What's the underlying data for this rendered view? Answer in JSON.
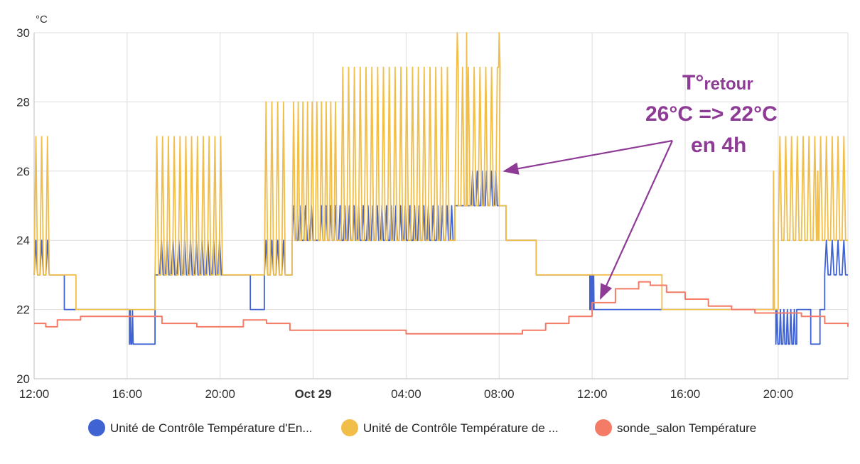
{
  "chart_data": {
    "type": "line",
    "step": true,
    "y_unit_label": "°C",
    "ylim": [
      20,
      30
    ],
    "y_ticks": [
      20,
      22,
      24,
      26,
      28,
      30
    ],
    "xlim_hours": [
      0,
      35
    ],
    "x_ticks": [
      {
        "label": "12:00",
        "hour": 0,
        "bold": false
      },
      {
        "label": "16:00",
        "hour": 4,
        "bold": false
      },
      {
        "label": "20:00",
        "hour": 8,
        "bold": false
      },
      {
        "label": "Oct 29",
        "hour": 12,
        "bold": true
      },
      {
        "label": "04:00",
        "hour": 16,
        "bold": false
      },
      {
        "label": "08:00",
        "hour": 20,
        "bold": false
      },
      {
        "label": "12:00",
        "hour": 24,
        "bold": false
      },
      {
        "label": "16:00",
        "hour": 28,
        "bold": false
      },
      {
        "label": "20:00",
        "hour": 32,
        "bold": false
      }
    ],
    "grid": true,
    "legend_position": "bottom",
    "series": [
      {
        "name": "Unité de Contrôle Température d'En...",
        "color": "#3f63d3",
        "segments": [
          {
            "from": 0.0,
            "to": 0.9,
            "value": 23,
            "osc_high": 24,
            "period": 0.25
          },
          {
            "from": 0.9,
            "to": 1.3,
            "value": 23
          },
          {
            "from": 1.3,
            "to": 1.8,
            "value": 22
          },
          {
            "from": 1.8,
            "to": 4.1,
            "value": 22
          },
          {
            "from": 4.1,
            "to": 4.3,
            "value": 21,
            "osc_high": 22,
            "period": 0.1
          },
          {
            "from": 4.3,
            "to": 5.2,
            "value": 21
          },
          {
            "from": 5.2,
            "to": 5.4,
            "value": 23
          },
          {
            "from": 5.4,
            "to": 8.3,
            "value": 23,
            "osc_high": 24,
            "period": 0.25
          },
          {
            "from": 8.3,
            "to": 9.3,
            "value": 23
          },
          {
            "from": 9.3,
            "to": 9.9,
            "value": 22
          },
          {
            "from": 9.9,
            "to": 11.1,
            "value": 23,
            "osc_high": 24,
            "period": 0.25
          },
          {
            "from": 11.1,
            "to": 12.3,
            "value": 24,
            "osc_high": 25,
            "period": 0.25
          },
          {
            "from": 12.3,
            "to": 18.1,
            "value": 24,
            "osc_high": 25,
            "period": 0.2
          },
          {
            "from": 18.1,
            "to": 18.8,
            "value": 25
          },
          {
            "from": 18.8,
            "to": 20.1,
            "value": 25,
            "osc_high": 26,
            "period": 0.2
          },
          {
            "from": 20.1,
            "to": 20.3,
            "value": 25
          },
          {
            "from": 20.3,
            "to": 21.6,
            "value": 24
          },
          {
            "from": 21.6,
            "to": 23.9,
            "value": 23
          },
          {
            "from": 23.9,
            "to": 24.1,
            "value": 22,
            "osc_high": 23,
            "period": 0.05
          },
          {
            "from": 24.1,
            "to": 31.9,
            "value": 22
          },
          {
            "from": 31.9,
            "to": 32.8,
            "value": 21,
            "osc_high": 22,
            "period": 0.15
          },
          {
            "from": 32.8,
            "to": 33.4,
            "value": 22
          },
          {
            "from": 33.4,
            "to": 33.8,
            "value": 21
          },
          {
            "from": 33.8,
            "to": 34.0,
            "value": 22
          },
          {
            "from": 34.0,
            "to": 35.0,
            "value": 23,
            "osc_high": 24,
            "period": 0.25
          }
        ]
      },
      {
        "name": "Unité de Contrôle Température de ...",
        "color": "#f2be4a",
        "segments": [
          {
            "from": 0.0,
            "to": 0.9,
            "value": 23,
            "osc_high": 27,
            "period": 0.25
          },
          {
            "from": 0.9,
            "to": 1.8,
            "value": 23
          },
          {
            "from": 1.8,
            "to": 5.2,
            "value": 22
          },
          {
            "from": 5.2,
            "to": 8.3,
            "value": 23,
            "osc_high": 27,
            "period": 0.25
          },
          {
            "from": 8.3,
            "to": 9.9,
            "value": 23
          },
          {
            "from": 9.9,
            "to": 11.1,
            "value": 23,
            "osc_high": 28,
            "period": 0.25
          },
          {
            "from": 11.1,
            "to": 13.2,
            "value": 24,
            "osc_high": 28,
            "period": 0.2
          },
          {
            "from": 13.2,
            "to": 18.1,
            "value": 24,
            "osc_high": 29,
            "period": 0.25
          },
          {
            "from": 18.1,
            "to": 20.1,
            "value": 25,
            "osc_high": 29,
            "period": 0.25
          },
          {
            "from": 20.1,
            "to": 20.3,
            "value": 25
          },
          {
            "from": 20.3,
            "to": 21.6,
            "value": 24
          },
          {
            "from": 21.6,
            "to": 27.0,
            "value": 23
          },
          {
            "from": 27.0,
            "to": 27.3,
            "value": 22
          },
          {
            "from": 27.3,
            "to": 32.0,
            "value": 22
          },
          {
            "from": 32.0,
            "to": 35.0,
            "value": 24,
            "osc_high": 27,
            "period": 0.25
          }
        ],
        "peaks": [
          {
            "hour": 18.2,
            "value": 30
          },
          {
            "hour": 18.6,
            "value": 30
          },
          {
            "hour": 20.0,
            "value": 30
          },
          {
            "hour": 31.8,
            "value": 26
          },
          {
            "hour": 33.7,
            "value": 26
          }
        ]
      },
      {
        "name": "sonde_salon Température",
        "color": "#f47b66",
        "points": [
          [
            0.0,
            21.6
          ],
          [
            0.5,
            21.5
          ],
          [
            1.0,
            21.7
          ],
          [
            2.0,
            21.8
          ],
          [
            4.0,
            21.8
          ],
          [
            5.5,
            21.6
          ],
          [
            7.0,
            21.5
          ],
          [
            8.5,
            21.5
          ],
          [
            9.0,
            21.7
          ],
          [
            10.0,
            21.6
          ],
          [
            11.0,
            21.4
          ],
          [
            13.0,
            21.4
          ],
          [
            15.0,
            21.4
          ],
          [
            16.0,
            21.3
          ],
          [
            18.0,
            21.3
          ],
          [
            20.0,
            21.3
          ],
          [
            21.0,
            21.4
          ],
          [
            22.0,
            21.6
          ],
          [
            23.0,
            21.8
          ],
          [
            24.0,
            22.2
          ],
          [
            25.0,
            22.6
          ],
          [
            26.0,
            22.8
          ],
          [
            26.5,
            22.7
          ],
          [
            27.2,
            22.5
          ],
          [
            28.0,
            22.3
          ],
          [
            29.0,
            22.1
          ],
          [
            30.0,
            22.0
          ],
          [
            31.0,
            21.9
          ],
          [
            32.0,
            21.9
          ],
          [
            33.0,
            21.8
          ],
          [
            34.0,
            21.6
          ],
          [
            35.0,
            21.5
          ]
        ]
      }
    ]
  },
  "annotation": {
    "line1_main": "T°",
    "line1_sub": "retour",
    "line2": "26°C => 22°C",
    "line3": "en 4h",
    "color": "#8e3b96",
    "arrow_targets": [
      {
        "hour": 20.1,
        "value": 26
      },
      {
        "hour": 24.3,
        "value": 22.2
      }
    ]
  }
}
